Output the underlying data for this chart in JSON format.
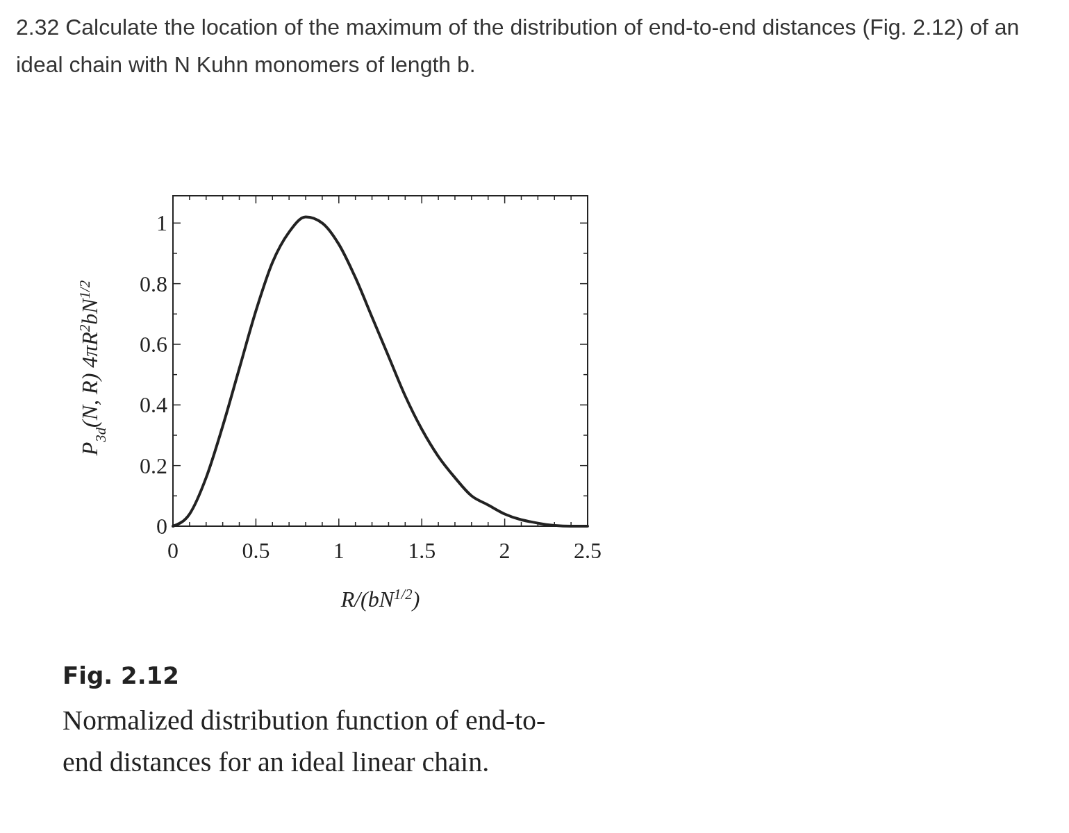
{
  "chart_data": {
    "type": "line",
    "title": "2.32 Calculate the location of the maximum of the distribution of end-to-end distances (Fig. 2.12) of an ideal chain with N Kuhn monomers of length b.",
    "xlabel": "R/(bN$^{1/2}$)",
    "ylabel": "P$_{3d}$(N, R) 4πR$^{2}$bN$^{1/2}$",
    "annotations": [
      "Fig. 2.12",
      "Normalized distribution function of end-to-end distances for an ideal linear chain."
    ],
    "x": [
      0,
      0.1,
      0.2,
      0.3,
      0.4,
      0.5,
      0.6,
      0.7,
      0.8,
      0.9,
      1.0,
      1.1,
      1.2,
      1.3,
      1.4,
      1.5,
      1.6,
      1.7,
      1.8,
      1.9,
      2.0,
      2.2,
      2.4,
      2.5
    ],
    "series": [
      {
        "color": "#222222",
        "values": [
          0,
          0.04,
          0.16,
          0.33,
          0.52,
          0.71,
          0.87,
          0.97,
          1.02,
          1.0,
          0.93,
          0.82,
          0.69,
          0.56,
          0.43,
          0.32,
          0.23,
          0.16,
          0.1,
          0.07,
          0.04,
          0.01,
          0.0,
          0.0
        ]
      }
    ],
    "xlim": [
      0,
      2.5
    ],
    "ylim": [
      0,
      1.09
    ],
    "xticks": [
      0,
      0.5,
      1,
      1.5,
      2,
      2.5,
      {
        "value": 0.1,
        "label": null
      },
      {
        "value": 0.2,
        "label": null
      },
      {
        "value": 0.3,
        "label": null
      },
      {
        "value": 0.4,
        "label": null
      },
      {
        "value": 0.6,
        "label": null
      },
      {
        "value": 0.7,
        "label": null
      },
      {
        "value": 0.8,
        "label": null
      },
      {
        "value": 0.9,
        "label": null
      },
      {
        "value": 1.1,
        "label": null
      },
      {
        "value": 1.2,
        "label": null
      },
      {
        "value": 1.3,
        "label": null
      },
      {
        "value": 1.4,
        "label": null
      },
      {
        "value": 1.6,
        "label": null
      },
      {
        "value": 1.7,
        "label": null
      },
      {
        "value": 1.8,
        "label": null
      },
      {
        "value": 1.9,
        "label": null
      },
      {
        "value": 2.1,
        "label": null
      },
      {
        "value": 2.2,
        "label": null
      },
      {
        "value": 2.3,
        "label": null
      },
      {
        "value": 2.4,
        "label": null
      }
    ],
    "yticks": [
      0,
      0.2,
      0.4,
      0.6,
      0.8,
      1,
      {
        "value": 0.1,
        "label": null
      },
      {
        "value": 0.3,
        "label": null
      },
      {
        "value": 0.5,
        "label": null
      },
      {
        "value": 0.7,
        "label": null
      },
      {
        "value": 0.9,
        "label": null
      }
    ],
    "grid": false,
    "marker": "none",
    "line_style": "solid"
  }
}
